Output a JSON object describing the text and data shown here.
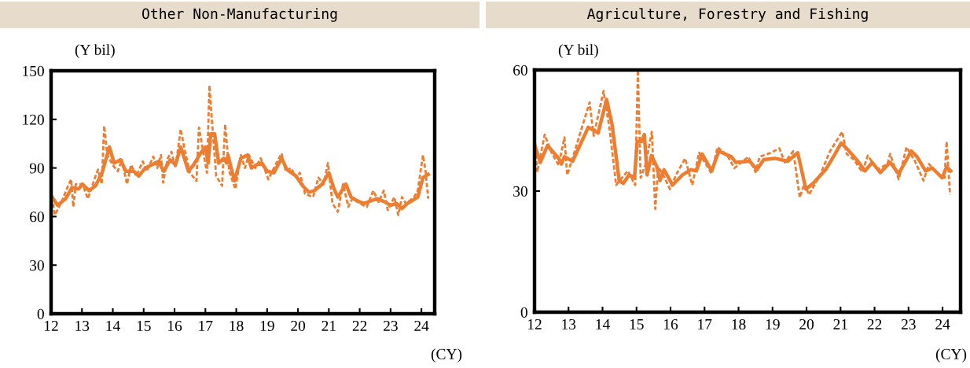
{
  "chart_data": [
    {
      "type": "line",
      "title": "Other Non-Manufacturing",
      "annotations": [
        "(Y bil)",
        "(CY)"
      ],
      "xlim": [
        12,
        24.43
      ],
      "xticks": [
        12,
        13,
        14,
        15,
        16,
        17,
        18,
        19,
        20,
        21,
        22,
        23,
        24
      ],
      "ylim": [
        0,
        150
      ],
      "yticks": [
        0,
        30,
        60,
        90,
        120,
        150
      ],
      "grid": false,
      "series": [
        {
          "color": "#ed7d31",
          "line_style": "dashed",
          "x": [
            12.0,
            12.12,
            12.34,
            12.55,
            12.65,
            12.72,
            12.8,
            13.02,
            13.19,
            13.44,
            13.52,
            13.64,
            13.72,
            13.82,
            13.99,
            14.16,
            14.29,
            14.46,
            14.59,
            14.76,
            14.97,
            15.1,
            15.31,
            15.44,
            15.56,
            15.63,
            15.78,
            15.9,
            16.03,
            16.2,
            16.33,
            16.5,
            16.71,
            16.79,
            16.92,
            17.05,
            17.13,
            17.22,
            17.35,
            17.54,
            17.64,
            17.77,
            17.97,
            18.15,
            18.28,
            18.41,
            18.62,
            18.79,
            19.04,
            19.3,
            19.47,
            19.6,
            19.77,
            19.94,
            20.06,
            20.23,
            20.49,
            20.66,
            20.83,
            20.97,
            21.12,
            21.29,
            21.46,
            21.63,
            21.76,
            22.01,
            22.23,
            22.44,
            22.61,
            22.78,
            22.91,
            23.12,
            23.25,
            23.37,
            23.5,
            23.76,
            23.88,
            24.05,
            24.14,
            24.22
          ],
          "values": [
            76,
            61,
            69,
            79,
            83,
            66,
            80,
            80,
            71,
            85,
            89,
            80,
            116,
            98,
            92,
            88,
            95,
            80,
            92,
            85,
            94,
            88,
            97,
            90,
            98,
            81,
            96,
            100,
            90,
            114,
            101,
            87,
            82,
            115,
            101,
            87,
            141,
            117,
            85,
            79,
            117,
            88,
            77,
            98,
            90,
            98,
            90,
            96,
            83,
            93,
            99,
            88,
            90,
            84,
            87,
            74,
            72,
            84,
            80,
            93,
            68,
            63,
            80,
            66,
            71,
            68,
            66,
            76,
            69,
            76,
            64,
            72,
            61,
            72,
            68,
            72,
            76,
            98,
            87,
            71
          ]
        },
        {
          "color": "#ed7d31",
          "line_style": "solid",
          "x": [
            12.0,
            12.21,
            12.47,
            12.68,
            12.89,
            13.02,
            13.23,
            13.44,
            13.65,
            13.89,
            14.04,
            14.25,
            14.42,
            14.68,
            14.84,
            15.05,
            15.27,
            15.48,
            15.65,
            15.86,
            16.03,
            16.2,
            16.45,
            16.62,
            16.84,
            17.0,
            17.09,
            17.17,
            17.3,
            17.43,
            17.6,
            17.69,
            17.73,
            17.94,
            18.15,
            18.37,
            18.49,
            18.66,
            18.83,
            19.0,
            19.22,
            19.47,
            19.64,
            19.94,
            20.15,
            20.36,
            20.53,
            20.78,
            21.0,
            21.17,
            21.29,
            21.42,
            21.55,
            21.72,
            21.89,
            22.14,
            22.4,
            22.57,
            22.82,
            22.99,
            23.2,
            23.37,
            23.54,
            23.71,
            23.88,
            24.05,
            24.22
          ],
          "values": [
            73,
            67,
            71,
            78,
            77,
            80,
            76,
            79,
            87,
            103,
            93,
            95,
            88,
            88,
            85,
            90,
            92,
            94,
            88,
            95,
            92,
            103,
            88,
            92,
            99,
            103,
            93,
            111,
            111,
            93,
            96,
            93,
            98,
            82,
            96,
            98,
            90,
            92,
            93,
            88,
            87,
            96,
            89,
            85,
            79,
            75,
            76,
            80,
            87,
            77,
            72,
            76,
            80,
            72,
            70,
            68,
            70,
            71,
            69,
            67,
            68,
            65,
            68,
            70,
            72,
            84,
            86
          ]
        }
      ]
    },
    {
      "type": "line",
      "title": "Agriculture, Forestry and Fishing",
      "annotations": [
        "(Y bil)",
        "(CY)"
      ],
      "xlim": [
        12,
        24.53
      ],
      "xticks": [
        12,
        13,
        14,
        15,
        16,
        17,
        18,
        19,
        20,
        21,
        22,
        23,
        24
      ],
      "ylim": [
        0,
        60
      ],
      "yticks": [
        0,
        30,
        60
      ],
      "grid": false,
      "series": [
        {
          "color": "#ed7d31",
          "line_style": "dashed",
          "x": [
            12.0,
            12.08,
            12.3,
            12.5,
            12.71,
            12.88,
            12.96,
            13.17,
            13.37,
            13.62,
            13.74,
            14.03,
            14.2,
            14.4,
            14.74,
            14.96,
            15.04,
            15.12,
            15.27,
            15.45,
            15.55,
            15.64,
            15.81,
            15.98,
            16.18,
            16.43,
            16.64,
            16.84,
            17.21,
            17.38,
            17.67,
            17.88,
            18.29,
            18.5,
            18.62,
            18.95,
            19.2,
            19.36,
            19.61,
            19.8,
            19.94,
            20.07,
            20.4,
            20.69,
            21.05,
            21.18,
            21.39,
            21.64,
            21.8,
            22.09,
            22.38,
            22.46,
            22.71,
            22.94,
            23.19,
            23.44,
            23.6,
            23.89,
            24.06,
            24.12,
            24.22
          ],
          "values": [
            42.3,
            34.7,
            44.0,
            39.5,
            36.4,
            43.3,
            34.0,
            39.5,
            45.1,
            52.0,
            43.7,
            54.8,
            45.8,
            31.5,
            35.0,
            31.5,
            60,
            33.3,
            36.7,
            44.7,
            25.6,
            36.0,
            33.6,
            30.5,
            34.3,
            38.1,
            31.5,
            39.5,
            34.3,
            40.9,
            38.8,
            35.7,
            38.5,
            34.7,
            38.5,
            39.5,
            40.6,
            37.1,
            39.9,
            28.4,
            31.9,
            29.1,
            34.0,
            39.9,
            44.7,
            39.2,
            37.8,
            34.7,
            38.8,
            35.3,
            36.7,
            39.2,
            32.9,
            40.9,
            37.4,
            32.6,
            36.7,
            34.0,
            33.3,
            42.3,
            29.1
          ]
        },
        {
          "color": "#ed7d31",
          "line_style": "solid",
          "x": [
            12.0,
            12.17,
            12.38,
            12.71,
            12.79,
            12.88,
            13.12,
            13.58,
            13.87,
            14.12,
            14.28,
            14.49,
            14.61,
            14.78,
            14.94,
            15.02,
            15.15,
            15.23,
            15.31,
            15.44,
            15.6,
            15.69,
            15.81,
            16.06,
            16.35,
            16.6,
            16.76,
            16.93,
            17.21,
            17.42,
            17.79,
            17.92,
            18.33,
            18.54,
            18.74,
            19.07,
            19.45,
            19.74,
            19.98,
            20.19,
            20.56,
            20.81,
            21.02,
            21.22,
            21.51,
            21.72,
            21.93,
            22.17,
            22.46,
            22.71,
            23.08,
            23.25,
            23.5,
            23.7,
            23.99,
            24.12,
            24.24
          ],
          "values": [
            41.6,
            37.1,
            41.3,
            38.1,
            36.7,
            38.5,
            37.4,
            45.8,
            44.4,
            52.7,
            46.5,
            32.6,
            31.9,
            34.0,
            33.3,
            42.3,
            42.3,
            44.0,
            34.0,
            38.8,
            36.0,
            32.6,
            35.3,
            31.5,
            34.0,
            35.3,
            35.0,
            39.2,
            35.0,
            39.9,
            38.5,
            37.1,
            37.4,
            35.3,
            37.8,
            38.1,
            37.4,
            39.5,
            30.5,
            31.9,
            35.3,
            38.8,
            41.9,
            40.2,
            37.4,
            35.0,
            37.1,
            34.6,
            37.1,
            34.3,
            39.9,
            38.5,
            35.0,
            35.7,
            33.3,
            36.0,
            35.0
          ]
        }
      ]
    }
  ]
}
